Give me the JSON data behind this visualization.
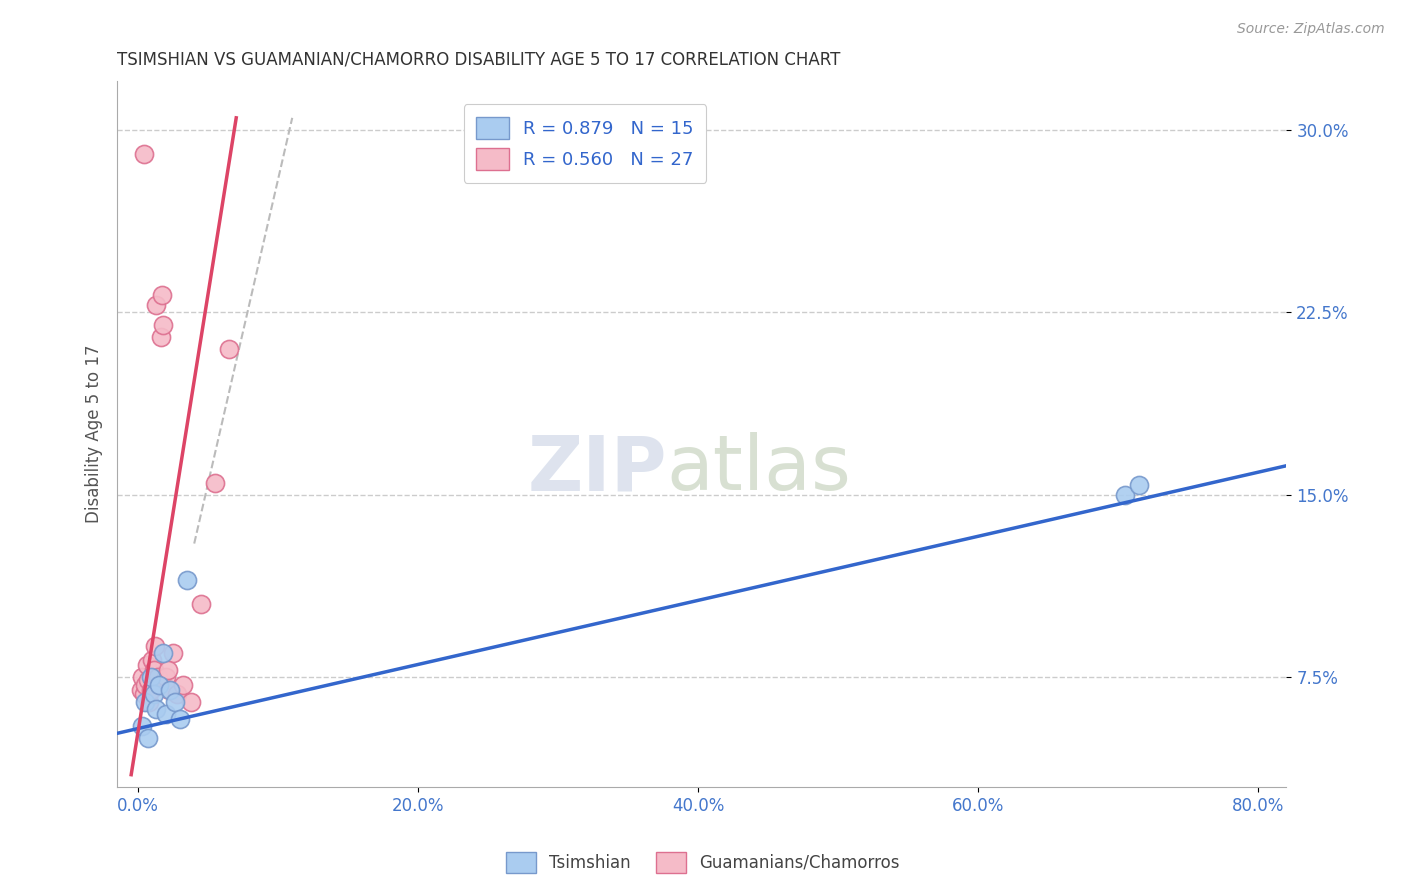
{
  "title": "TSIMSHIAN VS GUAMANIAN/CHAMORRO DISABILITY AGE 5 TO 17 CORRELATION CHART",
  "source": "Source: ZipAtlas.com",
  "xlabel_vals": [
    0.0,
    20.0,
    40.0,
    60.0,
    80.0
  ],
  "ylabel_vals": [
    7.5,
    15.0,
    22.5,
    30.0
  ],
  "ylabel_label": "Disability Age 5 to 17",
  "xlim": [
    -1.5,
    82
  ],
  "ylim": [
    3.0,
    32.0
  ],
  "background_color": "#ffffff",
  "grid_color": "#cccccc",
  "watermark_zip": "ZIP",
  "watermark_atlas": "atlas",
  "legend_r1": "R = 0.879",
  "legend_n1": "N = 15",
  "legend_r2": "R = 0.560",
  "legend_n2": "N = 27",
  "tsimshian_color": "#aaccf0",
  "tsimshian_edge": "#7799cc",
  "chamorro_color": "#f5bbc8",
  "chamorro_edge": "#dd7090",
  "blue_line_color": "#3366cc",
  "pink_line_color": "#dd4466",
  "diag_line_color": "#bbbbbb",
  "tsimshian_x": [
    0.3,
    0.5,
    0.7,
    0.9,
    1.1,
    1.3,
    1.5,
    1.8,
    2.0,
    2.3,
    2.6,
    3.0,
    3.5,
    70.5,
    71.5
  ],
  "tsimshian_y": [
    5.5,
    6.5,
    5.0,
    7.5,
    6.8,
    6.2,
    7.2,
    8.5,
    6.0,
    7.0,
    6.5,
    5.8,
    11.5,
    15.0,
    15.4
  ],
  "chamorro_x": [
    0.2,
    0.3,
    0.4,
    0.5,
    0.6,
    0.7,
    0.8,
    0.9,
    1.0,
    1.1,
    1.2,
    1.4,
    1.6,
    1.8,
    2.0,
    2.2,
    2.5,
    2.8,
    3.2,
    3.8,
    4.5,
    5.5,
    6.5,
    0.4,
    1.3,
    1.7,
    2.1
  ],
  "chamorro_y": [
    7.0,
    7.5,
    6.8,
    7.2,
    8.0,
    7.4,
    6.5,
    7.0,
    8.2,
    7.8,
    8.8,
    7.5,
    21.5,
    22.0,
    7.5,
    7.0,
    8.5,
    6.8,
    7.2,
    6.5,
    10.5,
    15.5,
    21.0,
    29.0,
    22.8,
    23.2,
    7.8
  ],
  "blue_line_x0": -1.5,
  "blue_line_x1": 82,
  "blue_line_y0": 5.2,
  "blue_line_y1": 16.2,
  "pink_line_x0": -0.5,
  "pink_line_x1": 7.0,
  "pink_line_y0": 3.5,
  "pink_line_y1": 30.5,
  "diag_x0": 4.0,
  "diag_y0": 13.0,
  "diag_x1": 11.0,
  "diag_y1": 30.5
}
